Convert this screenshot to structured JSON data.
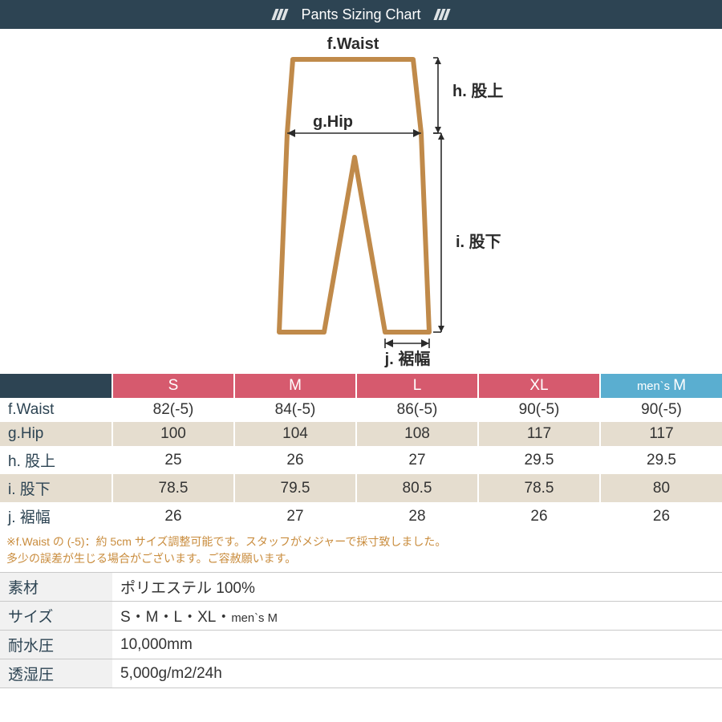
{
  "header": {
    "title": "Pants Sizing Chart"
  },
  "diagram": {
    "labels": {
      "f": "f.Waist",
      "g": "g.Hip",
      "h": "h. 股上",
      "i": "i. 股下",
      "j": "j. 裾幅"
    },
    "colors": {
      "pants_outline": "#c08a4a",
      "dimension": "#2b2b2b"
    }
  },
  "size_table": {
    "corner_bg": "#2d4453",
    "size_header_bg_female": "#d65a6e",
    "size_header_bg_mens": "#5aaed0",
    "row_alt_bg": "#e5ddcf",
    "columns": [
      {
        "label": "S",
        "type": "female"
      },
      {
        "label": "M",
        "type": "female"
      },
      {
        "label": "L",
        "type": "female"
      },
      {
        "label": "XL",
        "type": "female"
      },
      {
        "label": "men`s M",
        "type": "mens"
      }
    ],
    "rows": [
      {
        "label": "f.Waist",
        "values": [
          "82(-5)",
          "84(-5)",
          "86(-5)",
          "90(-5)",
          "90(-5)"
        ],
        "bg": "white"
      },
      {
        "label": "g.Hip",
        "values": [
          "100",
          "104",
          "108",
          "117",
          "117"
        ],
        "bg": "tan"
      },
      {
        "label": "h. 股上",
        "values": [
          "25",
          "26",
          "27",
          "29.5",
          "29.5"
        ],
        "bg": "white"
      },
      {
        "label": "i. 股下",
        "values": [
          "78.5",
          "79.5",
          "80.5",
          "78.5",
          "80"
        ],
        "bg": "tan"
      },
      {
        "label": "j. 裾幅",
        "values": [
          "26",
          "27",
          "28",
          "26",
          "26"
        ],
        "bg": "white"
      }
    ]
  },
  "footnote": {
    "line1": "※f.Waist の (-5)：約 5cm サイズ調整可能です。スタッフがメジャーで採寸致しました。",
    "line2": "多少の誤差が生じる場合がございます。ご容赦願います。"
  },
  "spec_table": {
    "rows": [
      {
        "label": "素材",
        "value": "ポリエステル 100%"
      },
      {
        "label": "サイズ",
        "value": "S・M・L・XL・",
        "mens_suffix": "men`s M"
      },
      {
        "label": "耐水圧",
        "value": "10,000mm"
      },
      {
        "label": "透湿圧",
        "value": "5,000g/m2/24h"
      }
    ]
  }
}
